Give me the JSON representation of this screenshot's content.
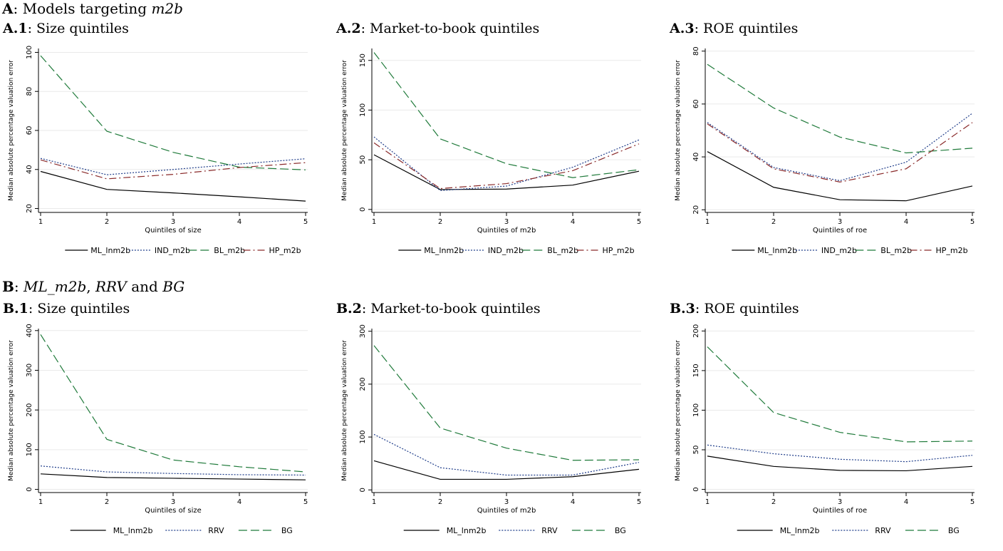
{
  "section_a": {
    "label": "A",
    "title": "Models targeting",
    "title_italic": "m2b"
  },
  "section_b": {
    "label": "B",
    "title_italic_1": "ML_m2b",
    "sep_1": ",",
    "title_italic_2": "RRV",
    "sep_2": "and",
    "title_italic_3": "BG"
  },
  "chart_data": [
    {
      "id": "A1",
      "label": "A.1",
      "title": "Size quintiles",
      "type": "line",
      "xlabel": "Quintiles of size",
      "ylabel": "Median absolute percentage valuation error",
      "x": [
        1,
        2,
        3,
        4,
        5
      ],
      "ylim": [
        18,
        102
      ],
      "yticks": [
        20,
        40,
        60,
        80,
        100
      ],
      "series": [
        {
          "name": "ML_lnm2b",
          "style": "solid",
          "color": "#000000",
          "values": [
            39,
            29.8,
            28,
            26,
            23.8
          ]
        },
        {
          "name": "IND_m2b",
          "style": "dotted",
          "color": "#1f3d8a",
          "values": [
            45.7,
            37.3,
            40,
            42.8,
            45.5
          ]
        },
        {
          "name": "BL_m2b",
          "style": "longdash",
          "color": "#1f7a3a",
          "values": [
            98.3,
            59.6,
            48.8,
            41.2,
            39.8
          ]
        },
        {
          "name": "HP_m2b",
          "style": "dashdot",
          "color": "#8a2a2a",
          "values": [
            44.9,
            35.2,
            37.5,
            41,
            43.5
          ]
        }
      ]
    },
    {
      "id": "A2",
      "label": "A.2",
      "title": "Market-to-book quintiles",
      "type": "line",
      "xlabel": "Quintiles of m2b",
      "ylabel": "Median absolute percentage valuation error",
      "x": [
        1,
        2,
        3,
        4,
        5
      ],
      "ylim": [
        -3,
        162
      ],
      "yticks": [
        0,
        50,
        100,
        150
      ],
      "series": [
        {
          "name": "ML_lnm2b",
          "style": "solid",
          "color": "#000000",
          "values": [
            55,
            20,
            20.5,
            24.5,
            38.5
          ]
        },
        {
          "name": "IND_m2b",
          "style": "dotted",
          "color": "#1f3d8a",
          "values": [
            73,
            19,
            23.5,
            42.5,
            70
          ]
        },
        {
          "name": "BL_m2b",
          "style": "longdash",
          "color": "#1f7a3a",
          "values": [
            158,
            71,
            46,
            32,
            40
          ]
        },
        {
          "name": "HP_m2b",
          "style": "dashdot",
          "color": "#8a2a2a",
          "values": [
            67,
            21,
            26,
            39,
            66
          ]
        }
      ]
    },
    {
      "id": "A3",
      "label": "A.3",
      "title": "ROE quintiles",
      "type": "line",
      "xlabel": "Quintiles of roe",
      "ylabel": "Median absolute percentage valuation error",
      "x": [
        1,
        2,
        3,
        4,
        5
      ],
      "ylim": [
        19,
        81
      ],
      "yticks": [
        20,
        40,
        60,
        80
      ],
      "series": [
        {
          "name": "ML_lnm2b",
          "style": "solid",
          "color": "#000000",
          "values": [
            42,
            28.5,
            23.8,
            23.4,
            29
          ]
        },
        {
          "name": "IND_m2b",
          "style": "dotted",
          "color": "#1f3d8a",
          "values": [
            53,
            36,
            31,
            38,
            56.5
          ]
        },
        {
          "name": "BL_m2b",
          "style": "longdash",
          "color": "#1f7a3a",
          "values": [
            75,
            58.5,
            47.5,
            41.5,
            43.3
          ]
        },
        {
          "name": "HP_m2b",
          "style": "dashdot",
          "color": "#8a2a2a",
          "values": [
            52.5,
            35.5,
            30.5,
            35.5,
            53
          ]
        }
      ]
    },
    {
      "id": "B1",
      "label": "B.1",
      "title": "Size quintiles",
      "type": "line",
      "xlabel": "Quintiles of size",
      "ylabel": "Median absolute percentage valuation error",
      "x": [
        1,
        2,
        3,
        4,
        5
      ],
      "ylim": [
        -8,
        405
      ],
      "yticks": [
        0,
        100,
        200,
        300,
        400
      ],
      "series": [
        {
          "name": "ML_lnm2b",
          "style": "solid",
          "color": "#000000",
          "values": [
            39,
            30,
            28,
            26,
            24
          ]
        },
        {
          "name": "RRV",
          "style": "dotted",
          "color": "#1f3d8a",
          "values": [
            59,
            44,
            40,
            37,
            36
          ]
        },
        {
          "name": "BG",
          "style": "longdash",
          "color": "#1f7a3a",
          "values": [
            390,
            126,
            74,
            57,
            44
          ]
        }
      ]
    },
    {
      "id": "B2",
      "label": "B.2",
      "title": "Market-to-book quintiles",
      "type": "line",
      "xlabel": "Quintiles of m2b",
      "ylabel": "Median absolute percentage valuation error",
      "x": [
        1,
        2,
        3,
        4,
        5
      ],
      "ylim": [
        -5,
        305
      ],
      "yticks": [
        0,
        100,
        200,
        300
      ],
      "series": [
        {
          "name": "ML_lnm2b",
          "style": "solid",
          "color": "#000000",
          "values": [
            55,
            20,
            20,
            25,
            39
          ]
        },
        {
          "name": "RRV",
          "style": "dotted",
          "color": "#1f3d8a",
          "values": [
            105,
            42,
            28,
            28,
            52
          ]
        },
        {
          "name": "BG",
          "style": "longdash",
          "color": "#1f7a3a",
          "values": [
            273,
            117,
            79,
            56,
            57
          ]
        }
      ]
    },
    {
      "id": "B3",
      "label": "B.3",
      "title": "ROE quintiles",
      "type": "line",
      "xlabel": "Quintiles of roe",
      "ylabel": "Median absolute percentage valuation error",
      "x": [
        1,
        2,
        3,
        4,
        5
      ],
      "ylim": [
        -4,
        203
      ],
      "yticks": [
        0,
        50,
        100,
        150,
        200
      ],
      "series": [
        {
          "name": "ML_lnm2b",
          "style": "solid",
          "color": "#000000",
          "values": [
            42,
            29,
            24,
            23.5,
            29
          ]
        },
        {
          "name": "RRV",
          "style": "dotted",
          "color": "#1f3d8a",
          "values": [
            56,
            45,
            38,
            35,
            43
          ]
        },
        {
          "name": "BG",
          "style": "longdash",
          "color": "#1f7a3a",
          "values": [
            180,
            97,
            72,
            60,
            61
          ]
        }
      ]
    }
  ]
}
